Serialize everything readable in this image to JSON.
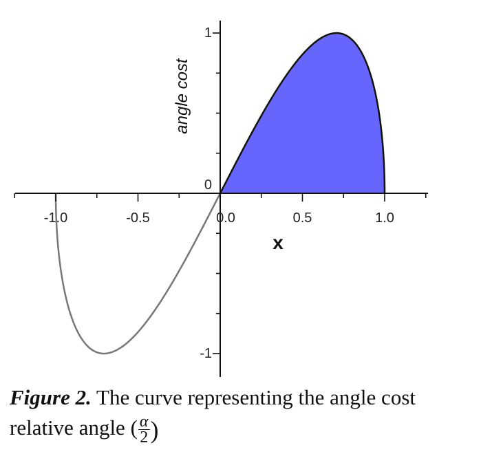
{
  "chart_data": {
    "type": "line",
    "title": "",
    "xlabel": "x",
    "ylabel": "angle cost",
    "xlim": [
      -1.25,
      1.25
    ],
    "ylim": [
      -1.15,
      1.15
    ],
    "x_ticks": [
      -1.0,
      -0.5,
      0.0,
      0.5,
      1.0
    ],
    "x_tick_labels": [
      "-1.0",
      "-0.5",
      "0.0",
      "0.5",
      "1.0"
    ],
    "y_tick_labels": [
      {
        "value": 1,
        "label": "1"
      },
      {
        "value": 0,
        "label": "0"
      },
      {
        "value": -1,
        "label": "-1"
      }
    ],
    "series": [
      {
        "function": "sin(2*arcsin(x) - pi/2) + 1 ... plotted as y = 2*x*sqrt(1-x^2)",
        "x": [
          -1.0,
          -0.95,
          -0.9,
          -0.8,
          -0.707,
          -0.6,
          -0.5,
          -0.4,
          -0.3,
          -0.2,
          -0.1,
          0.0,
          0.1,
          0.2,
          0.3,
          0.4,
          0.5,
          0.6,
          0.707,
          0.8,
          0.9,
          0.95,
          1.0
        ],
        "y": [
          0.0,
          -0.593,
          -0.785,
          -0.96,
          -1.0,
          -0.96,
          -0.866,
          -0.733,
          -0.572,
          -0.392,
          -0.199,
          0.0,
          0.199,
          0.392,
          0.572,
          0.733,
          0.866,
          0.96,
          1.0,
          0.96,
          0.785,
          0.593,
          0.0
        ]
      }
    ],
    "shaded_region": {
      "from_x": 0.0,
      "to_x": 1.0,
      "color": "#6666ff"
    },
    "curve_color_negative": "#777777",
    "curve_color_positive": "#111111",
    "grid": false
  },
  "caption": {
    "label": "Figure 2.",
    "text": " The curve representing the angle cost relative angle (",
    "frac_num": "α",
    "frac_den": "2",
    "close": ")"
  }
}
